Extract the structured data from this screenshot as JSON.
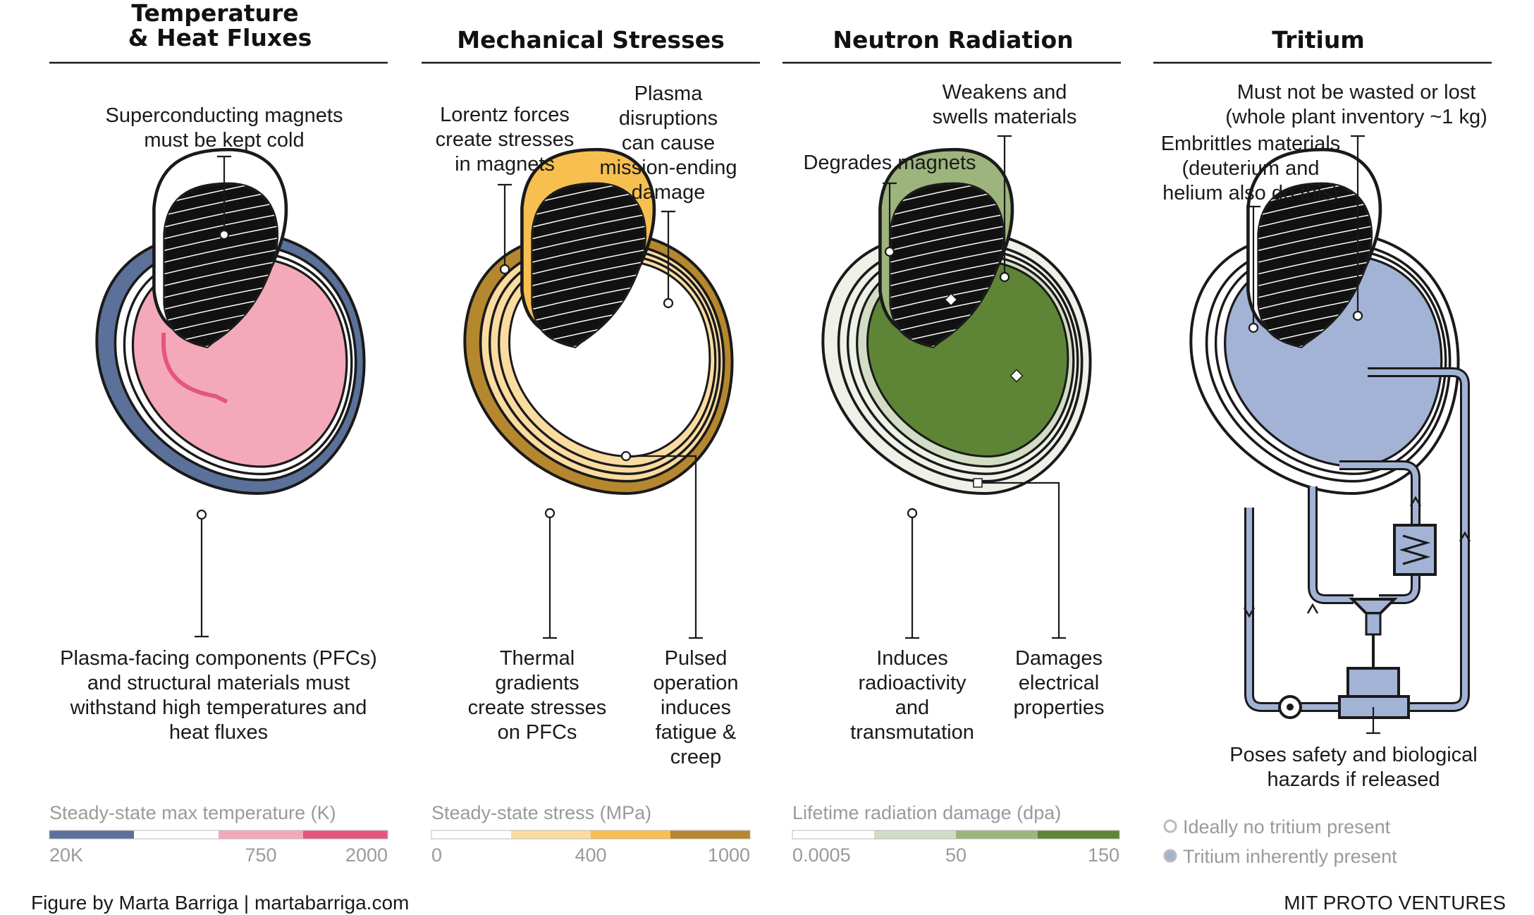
{
  "panels": [
    {
      "id": "temperature",
      "title_lines": [
        "Temperature",
        "& Heat Fluxes"
      ],
      "annotations": {
        "top": [
          "Superconducting magnets",
          "must be kept cold"
        ],
        "bottom": [
          "Plasma-facing components (PFCs)",
          "and structural materials must",
          "withstand high temperatures and",
          "heat fluxes"
        ]
      },
      "legend": {
        "title": "Steady-state max temperature (K)",
        "colors": [
          "#5b7199",
          "#ffffff",
          "#f4a9ba",
          "#e4577a"
        ],
        "ticks": [
          "20K",
          "750",
          "2000"
        ]
      }
    },
    {
      "id": "stress",
      "title_lines": [
        "Mechanical Stresses"
      ],
      "annotations": {
        "top_left": [
          "Lorentz forces",
          "create stresses",
          "in magnets"
        ],
        "top_right": [
          "Plasma",
          "disruptions",
          "can cause",
          "mission-ending",
          "damage"
        ],
        "bottom_left": [
          "Thermal",
          "gradients",
          "create stresses",
          "on PFCs"
        ],
        "bottom_right": [
          "Pulsed",
          "operation",
          "induces",
          "fatigue &",
          "creep"
        ]
      },
      "legend": {
        "title": "Steady-state stress (MPa)",
        "colors": [
          "#ffffff",
          "#fbdca0",
          "#f6bf50",
          "#b5872f"
        ],
        "ticks": [
          "0",
          "400",
          "1000"
        ]
      }
    },
    {
      "id": "neutron",
      "title_lines": [
        "Neutron Radiation"
      ],
      "annotations": {
        "top_left": [
          "Degrades magnets"
        ],
        "top_right": [
          "Weakens and",
          "swells materials"
        ],
        "bottom_left": [
          "Induces",
          "radioactivity",
          "and",
          "transmutation"
        ],
        "bottom_right": [
          "Damages",
          "electrical",
          "properties"
        ]
      },
      "legend": {
        "title": "Lifetime radiation damage (dpa)",
        "colors": [
          "#ffffff",
          "#d3dcc4",
          "#9db47d",
          "#5e8535"
        ],
        "ticks": [
          "0.0005",
          "50",
          "150"
        ]
      }
    },
    {
      "id": "tritium",
      "title_lines": [
        "Tritium"
      ],
      "annotations": {
        "top_right": [
          "Must not be wasted or lost",
          "(whole plant inventory ~1 kg)"
        ],
        "top_left": [
          "Embrittles materials",
          "(deuterium and",
          "helium also do this)"
        ],
        "bottom": [
          "Poses safety and biological",
          "hazards if released"
        ]
      },
      "legend": {
        "items": [
          "Ideally no tritium present",
          "Tritium inherently present"
        ],
        "colors": [
          "#ffffff",
          "#a3b3d6"
        ]
      }
    }
  ],
  "footer": {
    "credit": "Figure by Marta Barriga | martabarriga.com",
    "brand": "MIT PROTO VENTURES"
  },
  "colors": {
    "magnet_cold": "#5b7199",
    "pink": "#f4a9ba",
    "hot": "#e4577a",
    "stress_high": "#b5872f",
    "stress_mid": "#f6bf50",
    "stress_low": "#fbdca0",
    "rad_low": "#eef1e8",
    "rad_mid": "#d3dcc4",
    "rad_high": "#9db47d",
    "rad_top": "#5e8535",
    "tritium": "#a3b3d6",
    "ink": "#1a1a1a"
  }
}
